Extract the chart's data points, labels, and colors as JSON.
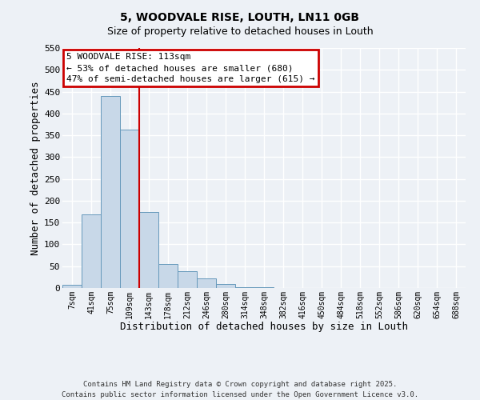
{
  "title": "5, WOODVALE RISE, LOUTH, LN11 0GB",
  "subtitle": "Size of property relative to detached houses in Louth",
  "xlabel": "Distribution of detached houses by size in Louth",
  "ylabel": "Number of detached properties",
  "bar_labels": [
    "7sqm",
    "41sqm",
    "75sqm",
    "109sqm",
    "143sqm",
    "178sqm",
    "212sqm",
    "246sqm",
    "280sqm",
    "314sqm",
    "348sqm",
    "382sqm",
    "416sqm",
    "450sqm",
    "484sqm",
    "518sqm",
    "552sqm",
    "586sqm",
    "620sqm",
    "654sqm",
    "688sqm"
  ],
  "bar_values": [
    8,
    168,
    440,
    363,
    175,
    55,
    39,
    22,
    10,
    2,
    1,
    0,
    0,
    0,
    0,
    0,
    0,
    0,
    0,
    0,
    0
  ],
  "bar_color": "#c8d8e8",
  "bar_edge_color": "#6699bb",
  "annotation_line1": "5 WOODVALE RISE: 113sqm",
  "annotation_line2": "← 53% of detached houses are smaller (680)",
  "annotation_line3": "47% of semi-detached houses are larger (615) →",
  "annotation_box_color": "#ffffff",
  "annotation_box_edge": "#cc0000",
  "highlight_line_color": "#cc0000",
  "highlight_bar_index": 3,
  "ylim": [
    0,
    550
  ],
  "yticks": [
    0,
    50,
    100,
    150,
    200,
    250,
    300,
    350,
    400,
    450,
    500,
    550
  ],
  "footer1": "Contains HM Land Registry data © Crown copyright and database right 2025.",
  "footer2": "Contains public sector information licensed under the Open Government Licence v3.0.",
  "bg_color": "#edf1f6",
  "plot_bg_color": "#edf1f6",
  "grid_color": "#ffffff"
}
